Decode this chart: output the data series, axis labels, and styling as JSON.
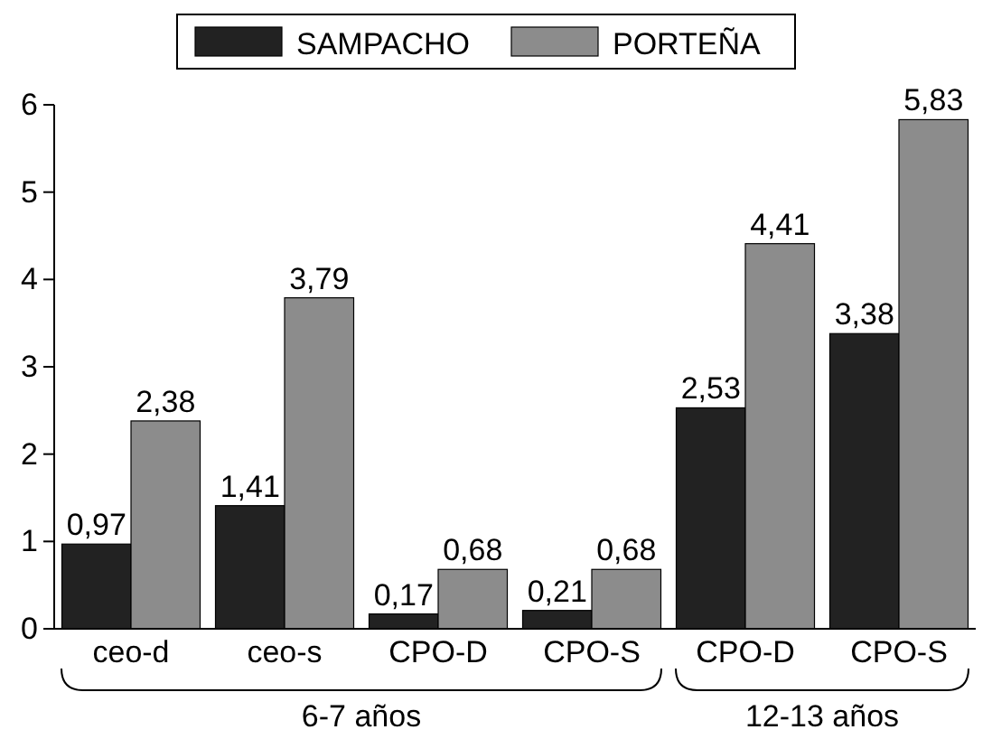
{
  "chart_data": {
    "type": "bar",
    "categories": [
      "ceo-d",
      "ceo-s",
      "CPO-D",
      "CPO-S",
      "CPO-D",
      "CPO-S"
    ],
    "series": [
      {
        "name": "SAMPACHO",
        "color": "#222222",
        "values": [
          0.97,
          1.41,
          0.17,
          0.21,
          2.53,
          3.38
        ],
        "value_labels": [
          "0,97",
          "1,41",
          "0,17",
          "0,21",
          "2,53",
          "3,38"
        ]
      },
      {
        "name": "PORTEÑA",
        "color": "#8c8c8c",
        "values": [
          2.38,
          3.79,
          0.68,
          0.68,
          4.41,
          5.83
        ],
        "value_labels": [
          "2,38",
          "3,79",
          "0,68",
          "0,68",
          "4,41",
          "5,83"
        ]
      }
    ],
    "ylim": [
      0,
      6
    ],
    "yticks": [
      0,
      1,
      2,
      3,
      4,
      5,
      6
    ],
    "grid": false,
    "legend": "top",
    "annotations": [
      "6-7 años",
      "12-13 años"
    ]
  }
}
